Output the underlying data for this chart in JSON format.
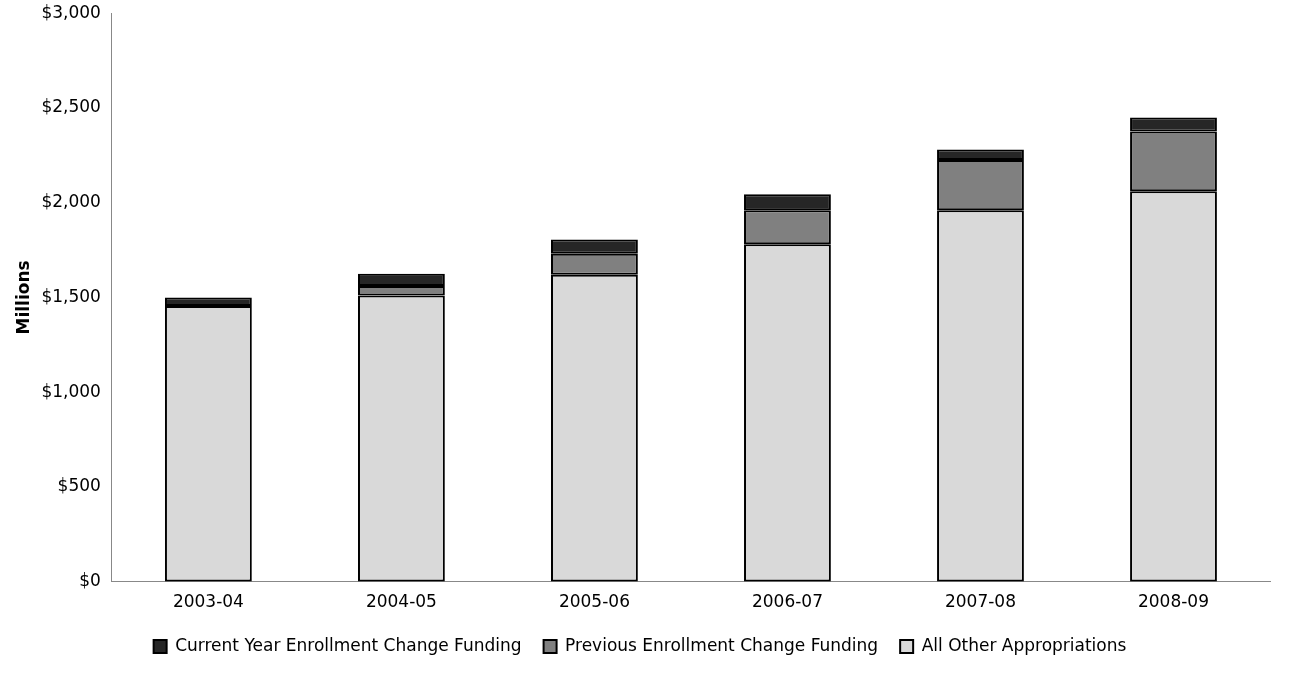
{
  "chart_data": {
    "type": "bar",
    "stacked": true,
    "ylabel": "Millions",
    "categories": [
      "2003-04",
      "2004-05",
      "2005-06",
      "2006-07",
      "2007-08",
      "2008-09"
    ],
    "series": [
      {
        "name": "All Other Appropriations",
        "color": "#d9d9d9",
        "values": [
          1455,
          1510,
          1620,
          1780,
          1960,
          2060
        ]
      },
      {
        "name": "Previous Enrollment Change Funding",
        "color": "#808080",
        "values": [
          0,
          50,
          110,
          180,
          265,
          315
        ]
      },
      {
        "name": "Current Year Enrollment Change Funding",
        "color": "#262626",
        "values": [
          45,
          65,
          75,
          85,
          55,
          75
        ]
      }
    ],
    "ylim": [
      0,
      3000
    ],
    "yticks": [
      {
        "value": 0,
        "label": "$0"
      },
      {
        "value": 500,
        "label": "$500"
      },
      {
        "value": 1000,
        "label": "$1,000"
      },
      {
        "value": 1500,
        "label": "$1,500"
      },
      {
        "value": 2000,
        "label": "$2,000"
      },
      {
        "value": 2500,
        "label": "$2,500"
      },
      {
        "value": 3000,
        "label": "$3,000"
      }
    ],
    "grid": false,
    "legend": "bottom"
  }
}
